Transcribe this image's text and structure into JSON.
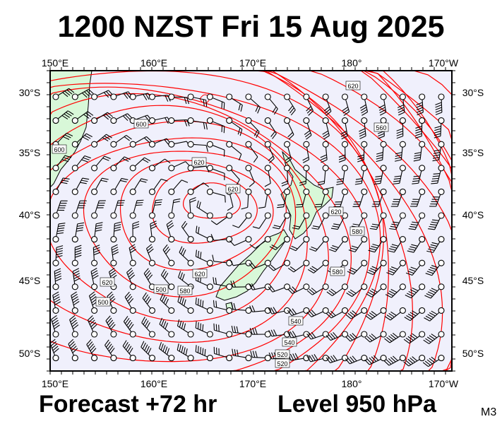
{
  "title": "1200 NZST Fri 15 Aug 2025",
  "forecast": "Forecast +72 hr",
  "level": "Level 950 hPa",
  "model_code": "M3",
  "map": {
    "lon_labels": [
      "150°E",
      "160°E",
      "170°E",
      "180°",
      "170°W"
    ],
    "lat_labels": [
      "30°S",
      "35°S",
      "40°S",
      "45°S",
      "50°S"
    ],
    "contour_labels": [
      "600",
      "600",
      "620",
      "620",
      "620",
      "620",
      "620",
      "580",
      "580",
      "560",
      "540",
      "540",
      "520",
      "520",
      "500",
      "500",
      "580",
      "620"
    ],
    "colors": {
      "ocean": "#f0f0fc",
      "land": "#d8f8d8",
      "contour": "#ff0000",
      "barb": "#000000"
    }
  }
}
